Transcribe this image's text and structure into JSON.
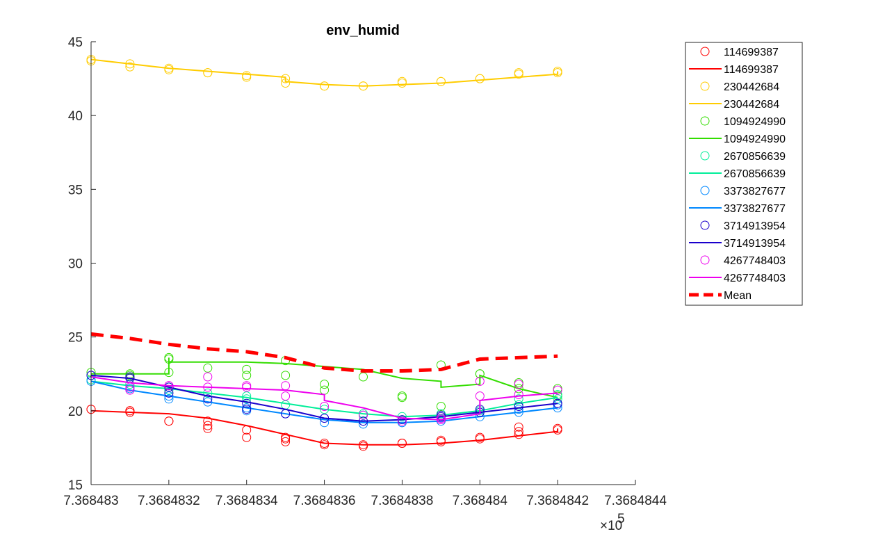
{
  "chart_data": {
    "type": "scatter",
    "title": "env_humid",
    "xlabel": "",
    "ylabel": "",
    "x_exponent_label": "×10",
    "x_exponent_power": "5",
    "xlim": [
      7.368483,
      7.3684844
    ],
    "ylim": [
      15,
      45
    ],
    "x_ticks": [
      7.368483,
      7.3684832,
      7.3684834,
      7.3684836,
      7.3684838,
      7.368484,
      7.3684842,
      7.3684844
    ],
    "x_tick_labels": [
      "7.368483",
      "7.3684832",
      "7.3684834",
      "7.3684836",
      "7.3684838",
      "7.368484",
      "7.3684842",
      "7.3684844"
    ],
    "y_ticks": [
      15,
      20,
      25,
      30,
      35,
      40,
      45
    ],
    "y_tick_labels": [
      "15",
      "20",
      "25",
      "30",
      "35",
      "40",
      "45"
    ],
    "grid": false,
    "legend_position": "outside-top-right",
    "series": [
      {
        "name": "114699387",
        "color": "#ff0000",
        "points": [
          [
            7.368483,
            20.1
          ],
          [
            7.368483,
            20.1
          ],
          [
            7.3684831,
            20.0
          ],
          [
            7.3684831,
            20.0
          ],
          [
            7.3684831,
            19.9
          ],
          [
            7.3684832,
            19.3
          ],
          [
            7.3684832,
            19.3
          ],
          [
            7.3684833,
            19.3
          ],
          [
            7.3684833,
            19.0
          ],
          [
            7.3684833,
            18.8
          ],
          [
            7.3684834,
            18.7
          ],
          [
            7.3684834,
            18.2
          ],
          [
            7.3684835,
            18.2
          ],
          [
            7.3684835,
            18.1
          ],
          [
            7.3684835,
            17.9
          ],
          [
            7.3684836,
            17.7
          ],
          [
            7.3684836,
            17.8
          ],
          [
            7.3684837,
            17.6
          ],
          [
            7.3684837,
            17.7
          ],
          [
            7.3684838,
            17.8
          ],
          [
            7.3684838,
            17.8
          ],
          [
            7.3684838,
            17.8
          ],
          [
            7.3684839,
            17.9
          ],
          [
            7.3684839,
            18.0
          ],
          [
            7.368484,
            18.1
          ],
          [
            7.368484,
            18.2
          ],
          [
            7.3684841,
            18.4
          ],
          [
            7.3684841,
            18.6
          ],
          [
            7.3684841,
            18.9
          ],
          [
            7.3684842,
            18.7
          ],
          [
            7.3684842,
            18.8
          ]
        ],
        "line": [
          [
            7.368483,
            20.0
          ],
          [
            7.3684831,
            19.9
          ],
          [
            7.3684832,
            19.8
          ],
          [
            7.3684833,
            19.5
          ],
          [
            7.3684834,
            19.0
          ],
          [
            7.3684835,
            18.4
          ],
          [
            7.3684836,
            17.8
          ],
          [
            7.3684837,
            17.7
          ],
          [
            7.3684838,
            17.7
          ],
          [
            7.3684839,
            17.8
          ],
          [
            7.368484,
            18.0
          ],
          [
            7.3684841,
            18.3
          ],
          [
            7.3684842,
            18.6
          ],
          [
            7.3684842,
            18.8
          ]
        ]
      },
      {
        "name": "230442684",
        "color": "#ffcc00",
        "points": [
          [
            7.368483,
            43.8
          ],
          [
            7.368483,
            43.7
          ],
          [
            7.3684831,
            43.5
          ],
          [
            7.3684831,
            43.3
          ],
          [
            7.3684832,
            43.2
          ],
          [
            7.3684832,
            43.1
          ],
          [
            7.3684833,
            42.9
          ],
          [
            7.3684833,
            42.9
          ],
          [
            7.3684834,
            42.7
          ],
          [
            7.3684834,
            42.6
          ],
          [
            7.3684835,
            42.5
          ],
          [
            7.3684835,
            42.2
          ],
          [
            7.3684836,
            42.0
          ],
          [
            7.3684836,
            42.0
          ],
          [
            7.3684837,
            42.0
          ],
          [
            7.3684837,
            42.0
          ],
          [
            7.3684838,
            42.2
          ],
          [
            7.3684838,
            42.3
          ],
          [
            7.3684839,
            42.3
          ],
          [
            7.3684839,
            42.3
          ],
          [
            7.368484,
            42.5
          ],
          [
            7.368484,
            42.5
          ],
          [
            7.3684841,
            42.8
          ],
          [
            7.3684841,
            42.9
          ],
          [
            7.3684842,
            42.9
          ],
          [
            7.3684842,
            43.0
          ]
        ],
        "line": [
          [
            7.368483,
            43.8
          ],
          [
            7.3684831,
            43.5
          ],
          [
            7.3684832,
            43.2
          ],
          [
            7.3684833,
            43.0
          ],
          [
            7.3684834,
            42.8
          ],
          [
            7.3684835,
            42.6
          ],
          [
            7.3684835,
            42.3
          ],
          [
            7.3684836,
            42.1
          ],
          [
            7.3684837,
            42.0
          ],
          [
            7.3684838,
            42.1
          ],
          [
            7.3684839,
            42.2
          ],
          [
            7.368484,
            42.4
          ],
          [
            7.3684841,
            42.6
          ],
          [
            7.3684842,
            42.8
          ],
          [
            7.3684842,
            43.0
          ]
        ]
      },
      {
        "name": "1094924990",
        "color": "#33dd00",
        "points": [
          [
            7.368483,
            22.6
          ],
          [
            7.3684831,
            22.5
          ],
          [
            7.3684831,
            22.4
          ],
          [
            7.3684832,
            22.6
          ],
          [
            7.3684832,
            23.6
          ],
          [
            7.3684832,
            23.5
          ],
          [
            7.3684833,
            22.9
          ],
          [
            7.3684834,
            22.8
          ],
          [
            7.3684834,
            22.4
          ],
          [
            7.3684835,
            23.4
          ],
          [
            7.3684835,
            22.4
          ],
          [
            7.3684836,
            21.8
          ],
          [
            7.3684836,
            21.4
          ],
          [
            7.3684837,
            22.3
          ],
          [
            7.3684838,
            21.0
          ],
          [
            7.3684838,
            20.9
          ],
          [
            7.3684839,
            23.1
          ],
          [
            7.3684839,
            20.3
          ],
          [
            7.368484,
            22.5
          ],
          [
            7.368484,
            22.5
          ],
          [
            7.3684841,
            21.9
          ],
          [
            7.3684841,
            21.5
          ],
          [
            7.3684842,
            21.5
          ],
          [
            7.3684842,
            21.0
          ]
        ],
        "line": [
          [
            7.368483,
            22.5
          ],
          [
            7.3684832,
            22.5
          ],
          [
            7.3684832,
            23.6
          ],
          [
            7.3684832,
            23.6
          ],
          [
            7.3684832,
            23.3
          ],
          [
            7.3684833,
            23.3
          ],
          [
            7.3684834,
            23.3
          ],
          [
            7.3684835,
            23.2
          ],
          [
            7.3684836,
            23.0
          ],
          [
            7.3684837,
            22.8
          ],
          [
            7.3684838,
            22.2
          ],
          [
            7.3684839,
            22.0
          ],
          [
            7.3684839,
            21.6
          ],
          [
            7.368484,
            21.8
          ],
          [
            7.368484,
            22.4
          ],
          [
            7.3684841,
            21.5
          ],
          [
            7.3684842,
            20.9
          ]
        ]
      },
      {
        "name": "2670856639",
        "color": "#00ee99",
        "points": [
          [
            7.368483,
            22.1
          ],
          [
            7.3684831,
            21.8
          ],
          [
            7.3684832,
            21.6
          ],
          [
            7.3684832,
            21.4
          ],
          [
            7.3684833,
            21.2
          ],
          [
            7.3684834,
            21.0
          ],
          [
            7.3684834,
            20.8
          ],
          [
            7.3684835,
            20.4
          ],
          [
            7.3684836,
            20.1
          ],
          [
            7.3684837,
            19.8
          ],
          [
            7.3684837,
            19.7
          ],
          [
            7.3684838,
            19.6
          ],
          [
            7.3684839,
            19.7
          ],
          [
            7.3684839,
            19.8
          ],
          [
            7.368484,
            20.0
          ],
          [
            7.3684841,
            20.4
          ],
          [
            7.3684841,
            20.8
          ],
          [
            7.3684842,
            20.8
          ],
          [
            7.3684842,
            21.1
          ]
        ],
        "line": [
          [
            7.368483,
            22.0
          ],
          [
            7.3684831,
            21.7
          ],
          [
            7.3684832,
            21.5
          ],
          [
            7.3684833,
            21.2
          ],
          [
            7.3684834,
            20.9
          ],
          [
            7.3684835,
            20.5
          ],
          [
            7.3684836,
            20.1
          ],
          [
            7.3684837,
            19.8
          ],
          [
            7.3684838,
            19.6
          ],
          [
            7.3684839,
            19.7
          ],
          [
            7.368484,
            20.0
          ],
          [
            7.3684841,
            20.5
          ],
          [
            7.3684842,
            20.9
          ]
        ]
      },
      {
        "name": "3373827677",
        "color": "#0088ff",
        "points": [
          [
            7.368483,
            22.4
          ],
          [
            7.368483,
            22.0
          ],
          [
            7.3684831,
            21.5
          ],
          [
            7.3684832,
            21.0
          ],
          [
            7.3684832,
            20.8
          ],
          [
            7.3684833,
            20.6
          ],
          [
            7.3684834,
            20.2
          ],
          [
            7.3684834,
            20.0
          ],
          [
            7.3684835,
            19.8
          ],
          [
            7.3684836,
            19.5
          ],
          [
            7.3684836,
            19.2
          ],
          [
            7.3684837,
            19.1
          ],
          [
            7.3684838,
            19.2
          ],
          [
            7.3684838,
            19.2
          ],
          [
            7.3684839,
            19.3
          ],
          [
            7.3684839,
            19.5
          ],
          [
            7.368484,
            19.6
          ],
          [
            7.3684841,
            19.9
          ],
          [
            7.3684841,
            20.1
          ],
          [
            7.3684842,
            20.2
          ],
          [
            7.3684842,
            20.4
          ]
        ],
        "line": [
          [
            7.368483,
            22.0
          ],
          [
            7.3684831,
            21.4
          ],
          [
            7.3684832,
            21.0
          ],
          [
            7.3684833,
            20.6
          ],
          [
            7.3684834,
            20.2
          ],
          [
            7.3684835,
            19.8
          ],
          [
            7.3684836,
            19.4
          ],
          [
            7.3684837,
            19.2
          ],
          [
            7.3684838,
            19.2
          ],
          [
            7.3684839,
            19.3
          ],
          [
            7.368484,
            19.6
          ],
          [
            7.3684841,
            19.9
          ],
          [
            7.3684842,
            20.2
          ]
        ]
      },
      {
        "name": "3714913954",
        "color": "#1a00cc",
        "points": [
          [
            7.368483,
            22.4
          ],
          [
            7.3684831,
            22.3
          ],
          [
            7.3684831,
            22.2
          ],
          [
            7.3684832,
            21.6
          ],
          [
            7.3684832,
            21.2
          ],
          [
            7.3684833,
            20.8
          ],
          [
            7.3684834,
            20.5
          ],
          [
            7.3684834,
            20.1
          ],
          [
            7.3684835,
            19.8
          ],
          [
            7.3684836,
            19.5
          ],
          [
            7.3684837,
            19.3
          ],
          [
            7.3684837,
            19.3
          ],
          [
            7.3684838,
            19.4
          ],
          [
            7.3684839,
            19.6
          ],
          [
            7.3684839,
            19.7
          ],
          [
            7.368484,
            19.9
          ],
          [
            7.368484,
            20.1
          ],
          [
            7.3684841,
            20.3
          ],
          [
            7.3684842,
            20.5
          ],
          [
            7.3684842,
            20.5
          ]
        ],
        "line": [
          [
            7.368483,
            22.4
          ],
          [
            7.3684831,
            22.2
          ],
          [
            7.3684832,
            21.6
          ],
          [
            7.3684833,
            21.0
          ],
          [
            7.3684834,
            20.6
          ],
          [
            7.3684835,
            20.1
          ],
          [
            7.3684836,
            19.5
          ],
          [
            7.3684837,
            19.3
          ],
          [
            7.3684838,
            19.4
          ],
          [
            7.3684839,
            19.6
          ],
          [
            7.368484,
            19.9
          ],
          [
            7.3684841,
            20.2
          ],
          [
            7.3684842,
            20.5
          ]
        ]
      },
      {
        "name": "4267748403",
        "color": "#ee00ee",
        "points": [
          [
            7.3684831,
            21.6
          ],
          [
            7.3684831,
            21.4
          ],
          [
            7.3684832,
            21.7
          ],
          [
            7.3684832,
            21.7
          ],
          [
            7.3684833,
            21.6
          ],
          [
            7.3684833,
            22.3
          ],
          [
            7.3684834,
            21.6
          ],
          [
            7.3684834,
            21.7
          ],
          [
            7.3684835,
            21.7
          ],
          [
            7.3684835,
            21.0
          ],
          [
            7.3684836,
            20.3
          ],
          [
            7.3684837,
            19.7
          ],
          [
            7.3684838,
            19.3
          ],
          [
            7.3684839,
            19.4
          ],
          [
            7.3684839,
            19.5
          ],
          [
            7.368484,
            22.0
          ],
          [
            7.368484,
            21.0
          ],
          [
            7.3684841,
            21.1
          ],
          [
            7.3684841,
            21.8
          ],
          [
            7.3684842,
            21.4
          ]
        ],
        "line": [
          [
            7.368483,
            22.3
          ],
          [
            7.3684831,
            21.9
          ],
          [
            7.3684832,
            21.7
          ],
          [
            7.3684833,
            21.6
          ],
          [
            7.3684834,
            21.5
          ],
          [
            7.3684835,
            21.4
          ],
          [
            7.3684836,
            21.1
          ],
          [
            7.3684836,
            20.7
          ],
          [
            7.3684837,
            20.2
          ],
          [
            7.3684838,
            19.5
          ],
          [
            7.3684839,
            19.4
          ],
          [
            7.368484,
            19.8
          ],
          [
            7.368484,
            20.7
          ],
          [
            7.3684841,
            21.0
          ],
          [
            7.3684842,
            21.2
          ]
        ]
      }
    ],
    "mean": {
      "name": "Mean",
      "color": "#ff0000",
      "line": [
        [
          7.368483,
          25.2
        ],
        [
          7.3684831,
          24.9
        ],
        [
          7.3684832,
          24.5
        ],
        [
          7.3684833,
          24.2
        ],
        [
          7.3684834,
          24.0
        ],
        [
          7.3684835,
          23.6
        ],
        [
          7.3684836,
          22.9
        ],
        [
          7.3684837,
          22.7
        ],
        [
          7.3684838,
          22.7
        ],
        [
          7.3684839,
          22.8
        ],
        [
          7.368484,
          23.5
        ],
        [
          7.3684841,
          23.6
        ],
        [
          7.3684842,
          23.7
        ]
      ]
    }
  }
}
